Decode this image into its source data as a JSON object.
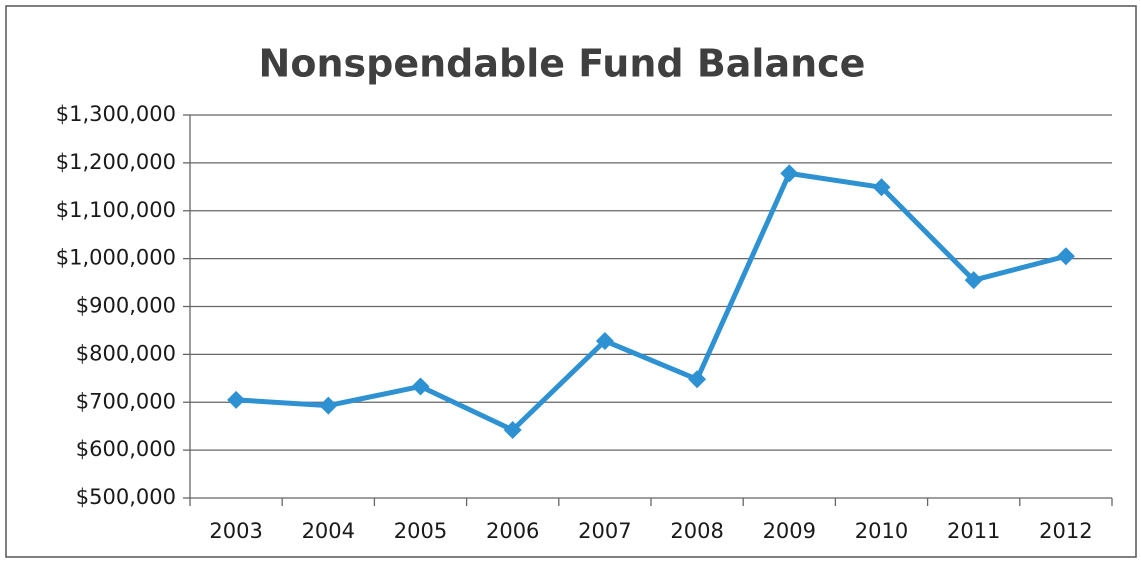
{
  "chart_data": {
    "type": "line",
    "title": "Nonspendable Fund Balance",
    "categories": [
      "2003",
      "2004",
      "2005",
      "2006",
      "2007",
      "2008",
      "2009",
      "2010",
      "2011",
      "2012"
    ],
    "series": [
      {
        "name": "Nonspendable Fund Balance",
        "color": "#2e91d2",
        "values": [
          705000,
          693000,
          733000,
          642000,
          828000,
          748000,
          1178000,
          1149000,
          955000,
          1005000
        ]
      }
    ],
    "ylim": [
      500000,
      1300000
    ],
    "yticks": [
      {
        "value": 500000,
        "label": "$500,000"
      },
      {
        "value": 600000,
        "label": "$600,000"
      },
      {
        "value": 700000,
        "label": "$700,000"
      },
      {
        "value": 800000,
        "label": "$800,000"
      },
      {
        "value": 900000,
        "label": "$900,000"
      },
      {
        "value": 1000000,
        "label": "$1,000,000"
      },
      {
        "value": 1100000,
        "label": "$1,100,000"
      },
      {
        "value": 1200000,
        "label": "$1,200,000"
      },
      {
        "value": 1300000,
        "label": "$1,300,000"
      }
    ],
    "grid": true
  }
}
